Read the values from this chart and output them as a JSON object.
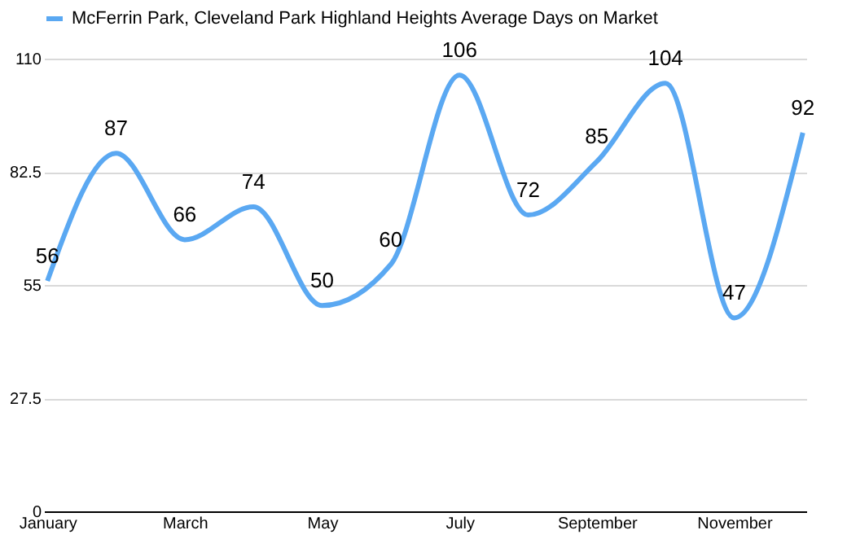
{
  "chart_data": {
    "type": "line",
    "categories": [
      "January",
      null,
      "March",
      null,
      "May",
      null,
      "July",
      null,
      "September",
      null,
      "November",
      null
    ],
    "series": [
      {
        "name": "McFerrin Park, Cleveland Park Highland Heights Average Days on Market",
        "color": "#5aa8f2",
        "values": [
          56,
          87,
          66,
          74,
          50,
          60,
          106,
          72,
          85,
          104,
          47,
          92
        ]
      }
    ],
    "ylim": [
      0,
      110
    ],
    "yticks": [
      0,
      27.5,
      55,
      82.5,
      110
    ],
    "grid": "y",
    "legend": "top",
    "data_labels": true,
    "marker": "none",
    "line_style": "solid"
  }
}
